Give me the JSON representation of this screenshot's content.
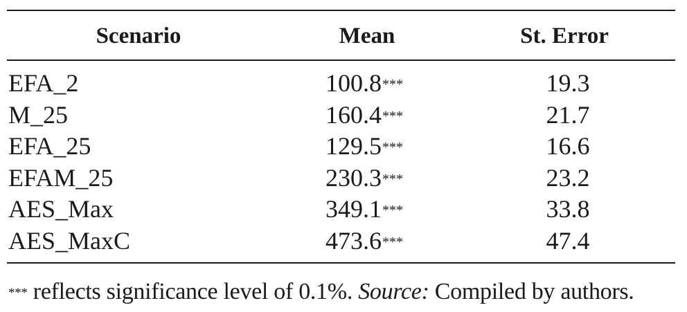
{
  "table": {
    "headers": [
      "Scenario",
      "Mean",
      "St. Error"
    ],
    "rows": [
      {
        "scenario": "EFA_2",
        "mean": "100.8",
        "sig": "***",
        "se": "19.3"
      },
      {
        "scenario": "M_25",
        "mean": "160.4",
        "sig": "***",
        "se": "21.7"
      },
      {
        "scenario": "EFA_25",
        "mean": "129.5",
        "sig": "***",
        "se": "16.6"
      },
      {
        "scenario": "EFAM_25",
        "mean": "230.3",
        "sig": "***",
        "se": "23.2"
      },
      {
        "scenario": "AES_Max",
        "mean": "349.1",
        "sig": "***",
        "se": "33.8"
      },
      {
        "scenario": "AES_MaxC",
        "mean": "473.6",
        "sig": "***",
        "se": "47.4"
      }
    ]
  },
  "note": {
    "marker": "***",
    "text": " reflects significance level of 0.1%. ",
    "source_label": "Source:",
    "source_text": " Compiled by authors."
  }
}
